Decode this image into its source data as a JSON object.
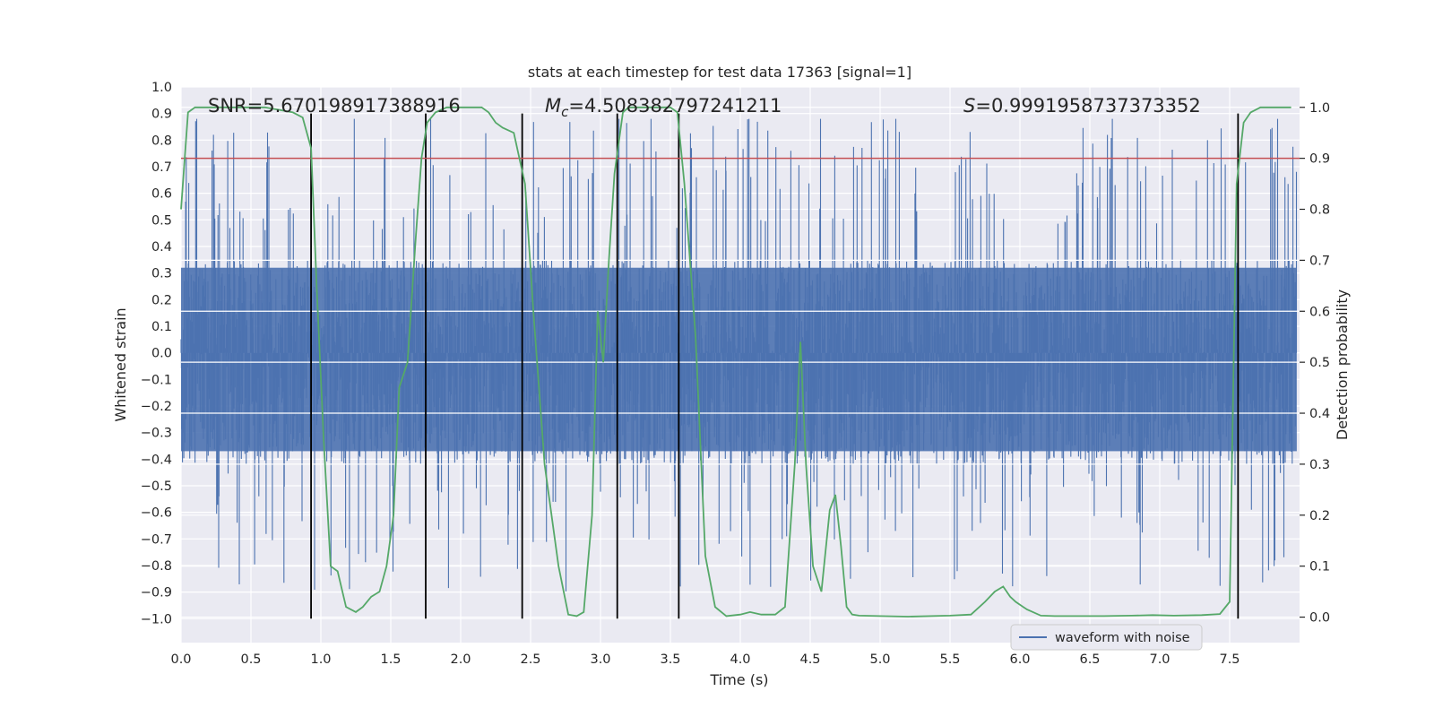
{
  "chart_data": {
    "type": "line",
    "title": "stats at each timestep for test data 17363 [signal=1]",
    "xlabel": "Time (s)",
    "ylabel_left": "Whitened strain",
    "ylabel_right": "Detection probability",
    "xlim": [
      0.0,
      8.0
    ],
    "ylim_left": [
      -1.09,
      1.0
    ],
    "ylim_right": [
      -0.05,
      1.04
    ],
    "xticks": [
      0.0,
      0.5,
      1.0,
      1.5,
      2.0,
      2.5,
      3.0,
      3.5,
      4.0,
      4.5,
      5.0,
      5.5,
      6.0,
      6.5,
      7.0,
      7.5
    ],
    "xtick_labels": [
      "0.0",
      "0.5",
      "1.0",
      "1.5",
      "2.0",
      "2.5",
      "3.0",
      "3.5",
      "4.0",
      "4.5",
      "5.0",
      "5.5",
      "6.0",
      "6.5",
      "7.0",
      "7.5"
    ],
    "yticks_left": [
      1.0,
      0.9,
      0.8,
      0.7,
      0.6,
      0.5,
      0.4,
      0.3,
      0.2,
      0.1,
      0.0,
      -0.1,
      -0.2,
      -0.3,
      -0.4,
      -0.5,
      -0.6,
      -0.7,
      -0.8,
      -0.9,
      -1.0
    ],
    "ytick_labels_left": [
      "1.0",
      "0.9",
      "0.8",
      "0.7",
      "0.6",
      "0.5",
      "0.4",
      "0.3",
      "0.2",
      "0.1",
      "0.0",
      "−0.1",
      "−0.2",
      "−0.3",
      "−0.4",
      "−0.5",
      "−0.6",
      "−0.7",
      "−0.8",
      "−0.9",
      "−1.0"
    ],
    "yticks_right": [
      1.0,
      0.9,
      0.8,
      0.7,
      0.6,
      0.5,
      0.4,
      0.3,
      0.2,
      0.1,
      0.0
    ],
    "ytick_labels_right": [
      "1.0",
      "0.9",
      "0.8",
      "0.7",
      "0.6",
      "0.5",
      "0.4",
      "0.3",
      "0.2",
      "0.1",
      "0.0"
    ],
    "grid": true,
    "annotations": {
      "snr": "SNR=5.670198917388916",
      "mc_symbol": "M",
      "mc_sub": "c",
      "mc_value": "=4.508382797241211",
      "s_symbol": "S",
      "s_value": "=0.9991958737373352"
    },
    "legend": {
      "label": "waveform with noise",
      "position": "lower-right"
    },
    "threshold": {
      "axis": "right",
      "value": 0.9,
      "color": "#c44e52"
    },
    "vertical_markers": {
      "x": [
        0.93,
        1.75,
        2.44,
        3.12,
        3.56,
        7.56
      ],
      "ymin": -1.0,
      "ymax": 0.9,
      "color": "#000000"
    },
    "series": [
      {
        "name": "waveform with noise",
        "axis": "left",
        "kind": "noise",
        "color": "#4c72b0",
        "core_range": [
          -0.42,
          0.35
        ],
        "spike_range": [
          -0.9,
          0.88
        ],
        "samples": 3200
      },
      {
        "name": "detection probability",
        "axis": "right",
        "kind": "line",
        "color": "#55a868",
        "x": [
          0.0,
          0.05,
          0.1,
          0.2,
          0.4,
          0.6,
          0.8,
          0.87,
          0.93,
          0.97,
          1.02,
          1.07,
          1.12,
          1.18,
          1.25,
          1.3,
          1.36,
          1.42,
          1.47,
          1.52,
          1.56,
          1.62,
          1.68,
          1.72,
          1.76,
          1.82,
          1.9,
          2.0,
          2.08,
          2.15,
          2.2,
          2.25,
          2.3,
          2.38,
          2.42,
          2.46,
          2.52,
          2.6,
          2.7,
          2.77,
          2.83,
          2.88,
          2.94,
          2.98,
          3.02,
          3.06,
          3.1,
          3.16,
          3.2,
          3.26,
          3.3,
          3.4,
          3.5,
          3.55,
          3.6,
          3.68,
          3.75,
          3.82,
          3.9,
          4.0,
          4.07,
          4.15,
          4.25,
          4.32,
          4.39,
          4.43,
          4.47,
          4.52,
          4.58,
          4.64,
          4.68,
          4.72,
          4.76,
          4.8,
          4.85,
          5.0,
          5.2,
          5.5,
          5.65,
          5.75,
          5.82,
          5.88,
          5.93,
          5.97,
          6.05,
          6.15,
          6.25,
          6.4,
          6.6,
          6.8,
          6.95,
          7.1,
          7.3,
          7.43,
          7.5,
          7.55,
          7.6,
          7.65,
          7.72,
          7.82,
          7.94
        ],
        "y": [
          0.8,
          0.99,
          1.0,
          1.0,
          1.0,
          1.0,
          0.99,
          0.98,
          0.92,
          0.65,
          0.35,
          0.1,
          0.09,
          0.02,
          0.01,
          0.02,
          0.04,
          0.05,
          0.1,
          0.2,
          0.45,
          0.5,
          0.75,
          0.9,
          0.97,
          0.99,
          1.0,
          1.0,
          1.0,
          1.0,
          0.99,
          0.97,
          0.96,
          0.95,
          0.9,
          0.85,
          0.6,
          0.3,
          0.1,
          0.005,
          0.002,
          0.01,
          0.2,
          0.6,
          0.5,
          0.7,
          0.87,
          0.99,
          1.0,
          1.0,
          1.0,
          1.0,
          1.0,
          0.99,
          0.85,
          0.55,
          0.12,
          0.02,
          0.002,
          0.005,
          0.01,
          0.005,
          0.005,
          0.02,
          0.3,
          0.54,
          0.3,
          0.1,
          0.05,
          0.21,
          0.24,
          0.14,
          0.02,
          0.005,
          0.003,
          0.002,
          0.001,
          0.003,
          0.005,
          0.03,
          0.05,
          0.06,
          0.04,
          0.03,
          0.015,
          0.003,
          0.002,
          0.002,
          0.002,
          0.003,
          0.004,
          0.003,
          0.004,
          0.006,
          0.03,
          0.85,
          0.97,
          0.99,
          1.0,
          1.0,
          1.0
        ]
      }
    ]
  }
}
